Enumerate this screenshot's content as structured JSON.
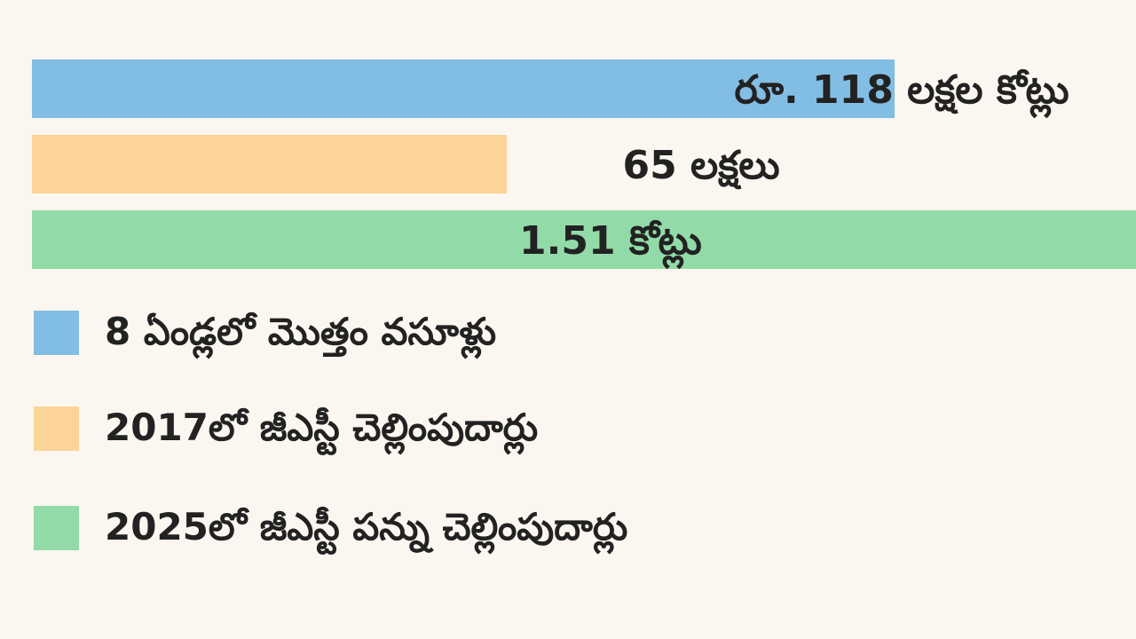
{
  "chart_data": {
    "type": "bar",
    "orientation": "horizontal",
    "categories": [
      "8 ఏండ్లలో మొత్తం వసూళ్లు",
      "2017లో జీఎస్టీ చెల్లింపుదార్లు",
      "2025లో జీఎస్టీ పన్ను చెల్లింపుదార్లు"
    ],
    "values": [
      118,
      65,
      151
    ],
    "data_labels": [
      "రూ. 118 లక్షల కోట్లు",
      "65 లక్షలు",
      "1.51 కోట్లు"
    ],
    "colors": [
      "#82bde3",
      "#fcd497",
      "#92dba8"
    ],
    "title": "",
    "xlabel": "",
    "ylabel": "",
    "grid": false,
    "legend": "bottom-left"
  }
}
